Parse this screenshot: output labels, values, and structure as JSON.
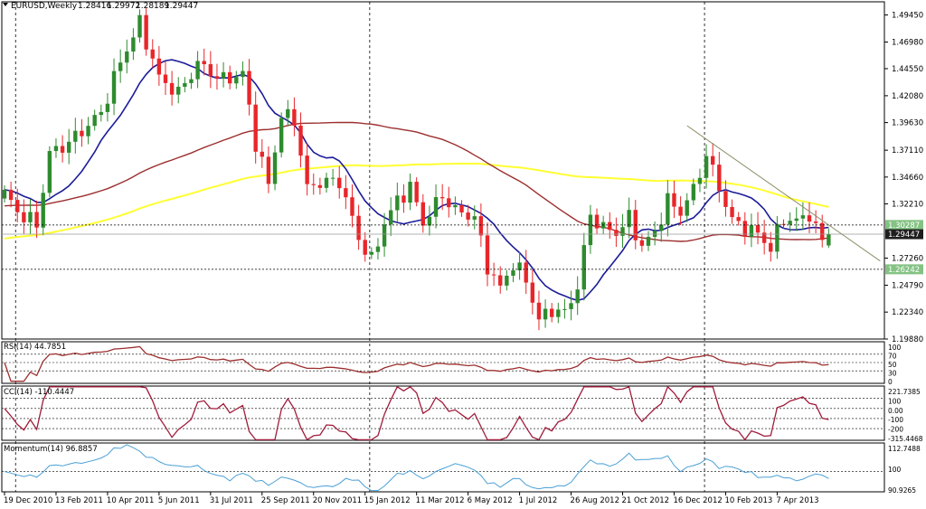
{
  "chart": {
    "symbol_timeframe": "EURUSD,Weekly",
    "ohlc": {
      "open": "1.28416",
      "high": "1.29972",
      "low": "1.28189",
      "close": "1.29447"
    }
  },
  "colors": {
    "background": "#ffffff",
    "grid": "#000000",
    "bull": "#2e8b2e",
    "bear": "#e8262a",
    "ma_fast": "#1c1c9a",
    "ma_mid": "#9c2e2e",
    "ma_slow": "#ffff33",
    "trend": "#8f8f6a",
    "osc": "#a01c3c",
    "momentum": "#4aa0d6",
    "price_tag_bg": "#1e1e1e",
    "level_tag_bg": "#84c284"
  },
  "price_axis": {
    "ticks": [
      "1.49450",
      "1.46980",
      "1.44550",
      "1.42080",
      "1.39630",
      "1.37110",
      "1.34660",
      "1.32210",
      "1.27260",
      "1.24790",
      "1.22340",
      "1.19880"
    ],
    "tags": [
      {
        "name": "upper-level",
        "label": "1.30287",
        "value": 1.30287,
        "style": "level"
      },
      {
        "name": "current-price",
        "label": "1.29447",
        "value": 1.29447,
        "style": "price"
      },
      {
        "name": "lower-level",
        "label": "1.26242",
        "value": 1.26242,
        "style": "level"
      }
    ]
  },
  "indicators": {
    "rsi": {
      "title": "RSI(14) 44.7851",
      "ticks": [
        "100",
        "70",
        "50",
        "30",
        "0"
      ]
    },
    "cci": {
      "title": "CCI(14) -110.4447",
      "ticks": [
        "221.7385",
        "100",
        "0.00",
        "-100",
        "-200",
        "-315.4468"
      ]
    },
    "momentum": {
      "title": "Momentum(14) 96.8857",
      "ticks": [
        "112.7488",
        "100",
        "90.9265"
      ]
    }
  },
  "time_axis": {
    "labels": [
      "19 Dec 2010",
      "13 Feb 2011",
      "10 Apr 2011",
      "5 Jun 2011",
      "31 Jul 2011",
      "25 Sep 2011",
      "20 Nov 2011",
      "15 Jan 2012",
      "11 Mar 2012",
      "6 May 2012",
      "1 Jul 2012",
      "26 Aug 2012",
      "21 Oct 2012",
      "16 Dec 2012",
      "10 Feb 2013",
      "7 Apr 2013"
    ]
  },
  "chart_data": {
    "type": "candlestick",
    "weeks_per_label": 8,
    "price_range": [
      1.1988,
      1.5065
    ],
    "close_anchors": [
      {
        "w": 0,
        "c": 1.332
      },
      {
        "w": 2,
        "c": 1.315
      },
      {
        "w": 5,
        "c": 1.303
      },
      {
        "w": 7,
        "c": 1.368
      },
      {
        "w": 10,
        "c": 1.378
      },
      {
        "w": 15,
        "c": 1.405
      },
      {
        "w": 18,
        "c": 1.452
      },
      {
        "w": 21,
        "c": 1.487
      },
      {
        "w": 24,
        "c": 1.437
      },
      {
        "w": 27,
        "c": 1.423
      },
      {
        "w": 30,
        "c": 1.45
      },
      {
        "w": 34,
        "c": 1.435
      },
      {
        "w": 37,
        "c": 1.441
      },
      {
        "w": 39,
        "c": 1.378
      },
      {
        "w": 41,
        "c": 1.34
      },
      {
        "w": 43,
        "c": 1.403
      },
      {
        "w": 45,
        "c": 1.399
      },
      {
        "w": 47,
        "c": 1.336
      },
      {
        "w": 49,
        "c": 1.342
      },
      {
        "w": 52,
        "c": 1.343
      },
      {
        "w": 55,
        "c": 1.291
      },
      {
        "w": 57,
        "c": 1.27
      },
      {
        "w": 59,
        "c": 1.305
      },
      {
        "w": 61,
        "c": 1.325
      },
      {
        "w": 63,
        "c": 1.338
      },
      {
        "w": 65,
        "c": 1.305
      },
      {
        "w": 68,
        "c": 1.33
      },
      {
        "w": 70,
        "c": 1.316
      },
      {
        "w": 73,
        "c": 1.31
      },
      {
        "w": 75,
        "c": 1.265
      },
      {
        "w": 77,
        "c": 1.245
      },
      {
        "w": 79,
        "c": 1.268
      },
      {
        "w": 81,
        "c": 1.253
      },
      {
        "w": 83,
        "c": 1.216
      },
      {
        "w": 85,
        "c": 1.226
      },
      {
        "w": 87,
        "c": 1.222
      },
      {
        "w": 89,
        "c": 1.247
      },
      {
        "w": 91,
        "c": 1.312
      },
      {
        "w": 93,
        "c": 1.3
      },
      {
        "w": 95,
        "c": 1.296
      },
      {
        "w": 97,
        "c": 1.309
      },
      {
        "w": 99,
        "c": 1.283
      },
      {
        "w": 101,
        "c": 1.296
      },
      {
        "w": 103,
        "c": 1.325
      },
      {
        "w": 105,
        "c": 1.315
      },
      {
        "w": 107,
        "c": 1.335
      },
      {
        "w": 109,
        "c": 1.367
      },
      {
        "w": 111,
        "c": 1.337
      },
      {
        "w": 113,
        "c": 1.307
      },
      {
        "w": 115,
        "c": 1.3
      },
      {
        "w": 117,
        "c": 1.295
      },
      {
        "w": 119,
        "c": 1.282
      },
      {
        "w": 121,
        "c": 1.309
      },
      {
        "w": 123,
        "c": 1.306
      },
      {
        "w": 125,
        "c": 1.313
      },
      {
        "w": 127,
        "c": 1.287
      },
      {
        "w": 128,
        "c": 1.29447
      }
    ],
    "last_candle": {
      "open": 1.28416,
      "high": 1.29972,
      "low": 1.28189,
      "close": 1.29447
    },
    "moving_averages": [
      {
        "name": "fast",
        "period": 10
      },
      {
        "name": "mid",
        "period": 52
      },
      {
        "name": "slow",
        "period": 100
      }
    ],
    "trendline": [
      {
        "w": 106,
        "price": 1.3935
      },
      {
        "w": 136,
        "price": 1.27
      }
    ],
    "horizontal_levels": [
      1.30287,
      1.29447,
      1.26242
    ],
    "oscillators": {
      "rsi": {
        "range": [
          0,
          100
        ],
        "levels": [
          70,
          50,
          30
        ],
        "last": 44.7851
      },
      "cci": {
        "range": [
          -315.4468,
          221.7385
        ],
        "levels": [
          100,
          0,
          -100,
          -200
        ],
        "last": -110.4447
      },
      "momentum": {
        "range": [
          90.9265,
          112.7488
        ],
        "levels": [
          100
        ],
        "last": 96.8857
      }
    }
  }
}
